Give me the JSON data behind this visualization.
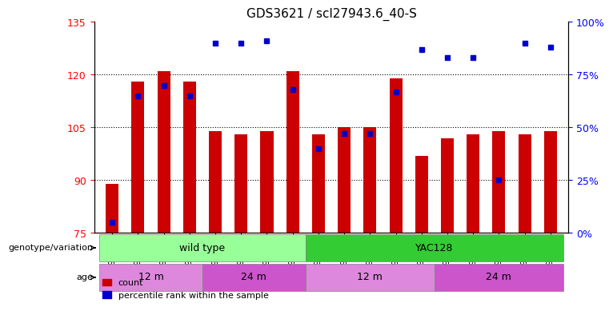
{
  "title": "GDS3621 / scl27943.6_40-S",
  "samples": [
    "GSM491327",
    "GSM491328",
    "GSM491329",
    "GSM491330",
    "GSM491336",
    "GSM491337",
    "GSM491338",
    "GSM491339",
    "GSM491331",
    "GSM491332",
    "GSM491333",
    "GSM491334",
    "GSM491335",
    "GSM491340",
    "GSM491341",
    "GSM491342",
    "GSM491343",
    "GSM491344"
  ],
  "counts": [
    89,
    118,
    121,
    118,
    104,
    103,
    104,
    121,
    103,
    105,
    105,
    119,
    97,
    102,
    103,
    104,
    103,
    104
  ],
  "percentile_ranks": [
    5,
    65,
    70,
    65,
    90,
    90,
    91,
    68,
    40,
    47,
    47,
    67,
    87,
    83,
    83,
    25,
    90,
    88
  ],
  "ymin": 75,
  "ymax": 135,
  "yticks": [
    75,
    90,
    105,
    120,
    135
  ],
  "right_yticks": [
    0,
    25,
    50,
    75,
    100
  ],
  "bar_color": "#cc0000",
  "percentile_color": "#0000cc",
  "genotype_groups": [
    {
      "label": "wild type",
      "start": 0,
      "end": 8,
      "color": "#99ff99"
    },
    {
      "label": "YAC128",
      "start": 8,
      "end": 18,
      "color": "#33cc33"
    }
  ],
  "age_groups": [
    {
      "label": "12 m",
      "start": 0,
      "end": 4,
      "color": "#dd88dd"
    },
    {
      "label": "24 m",
      "start": 4,
      "end": 8,
      "color": "#cc55cc"
    },
    {
      "label": "12 m",
      "start": 8,
      "end": 13,
      "color": "#dd88dd"
    },
    {
      "label": "24 m",
      "start": 13,
      "end": 18,
      "color": "#cc55cc"
    }
  ],
  "genotype_label": "genotype/variation",
  "age_label": "age",
  "legend_count": "count",
  "legend_percentile": "percentile rank within the sample",
  "bar_width": 0.5
}
